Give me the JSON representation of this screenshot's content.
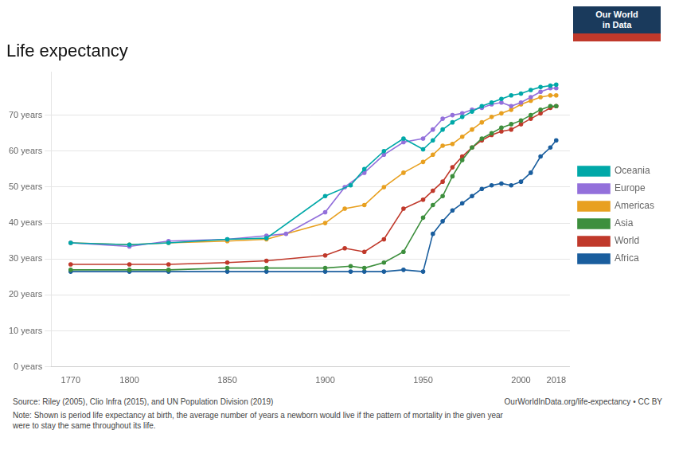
{
  "chart_data": {
    "type": "line",
    "title": "Life expectancy",
    "xlim": [
      1760,
      2025
    ],
    "xticks": [
      1770,
      1800,
      1850,
      1900,
      1950,
      2000,
      2018
    ],
    "ylim": [
      0,
      82
    ],
    "yticks": [
      {
        "value": 0,
        "label": "0 years"
      },
      {
        "value": 10,
        "label": "10 years"
      },
      {
        "value": 20,
        "label": "20 years"
      },
      {
        "value": 30,
        "label": "30 years"
      },
      {
        "value": 40,
        "label": "40 years"
      },
      {
        "value": 50,
        "label": "50 years"
      },
      {
        "value": 60,
        "label": "60 years"
      },
      {
        "value": 70,
        "label": "70 years"
      }
    ],
    "grid": "y",
    "legend": "right",
    "marker": "circle",
    "series": [
      {
        "name": "Oceania",
        "color": "#00a8a8",
        "x": [
          1770,
          1800,
          1820,
          1850,
          1870,
          1900,
          1913,
          1920,
          1930,
          1940,
          1950,
          1955,
          1960,
          1965,
          1970,
          1975,
          1980,
          1985,
          1990,
          1995,
          2000,
          2005,
          2010,
          2015,
          2018
        ],
        "values": [
          34.5,
          34.0,
          34.5,
          35.5,
          35.8,
          47.5,
          50.5,
          55.0,
          60.0,
          63.5,
          60.5,
          63.0,
          66.0,
          68.0,
          69.5,
          71.0,
          72.5,
          73.5,
          74.5,
          75.5,
          76.0,
          77.0,
          77.8,
          78.2,
          78.5
        ]
      },
      {
        "name": "Europe",
        "color": "#9370db",
        "x": [
          1770,
          1800,
          1820,
          1850,
          1870,
          1880,
          1900,
          1910,
          1920,
          1930,
          1940,
          1950,
          1955,
          1960,
          1965,
          1970,
          1975,
          1980,
          1985,
          1990,
          1995,
          2000,
          2005,
          2010,
          2015,
          2018
        ],
        "values": [
          34.5,
          33.5,
          35.0,
          35.5,
          36.5,
          37.0,
          43.0,
          50.0,
          54.0,
          59.0,
          62.5,
          63.5,
          66.0,
          69.0,
          70.0,
          70.5,
          71.5,
          72.0,
          73.0,
          73.5,
          72.5,
          73.5,
          75.0,
          76.5,
          77.5,
          77.5
        ]
      },
      {
        "name": "Americas",
        "color": "#e8a020",
        "x": [
          1770,
          1800,
          1820,
          1850,
          1870,
          1900,
          1910,
          1920,
          1930,
          1940,
          1950,
          1955,
          1960,
          1965,
          1970,
          1975,
          1980,
          1985,
          1990,
          1995,
          2000,
          2005,
          2010,
          2015,
          2018
        ],
        "values": [
          34.5,
          34.0,
          34.5,
          35.0,
          35.5,
          40.0,
          44.0,
          45.0,
          50.0,
          54.0,
          57.0,
          59.0,
          61.5,
          62.0,
          64.0,
          66.0,
          68.0,
          69.5,
          70.5,
          71.5,
          73.0,
          74.0,
          75.0,
          75.5,
          75.5
        ]
      },
      {
        "name": "Asia",
        "color": "#3d8f3d",
        "x": [
          1770,
          1800,
          1820,
          1850,
          1870,
          1900,
          1913,
          1920,
          1930,
          1940,
          1950,
          1955,
          1960,
          1965,
          1970,
          1975,
          1980,
          1985,
          1990,
          1995,
          2000,
          2005,
          2010,
          2015,
          2018
        ],
        "values": [
          27.0,
          27.0,
          27.0,
          27.5,
          27.5,
          27.5,
          28.0,
          27.5,
          29.0,
          32.0,
          41.5,
          45.0,
          47.5,
          53.0,
          57.5,
          61.0,
          63.5,
          65.0,
          66.5,
          67.5,
          68.5,
          70.0,
          71.5,
          72.5,
          72.5
        ]
      },
      {
        "name": "World",
        "color": "#c0392b",
        "x": [
          1770,
          1800,
          1820,
          1850,
          1870,
          1900,
          1910,
          1920,
          1930,
          1940,
          1950,
          1955,
          1960,
          1965,
          1970,
          1975,
          1980,
          1985,
          1990,
          1995,
          2000,
          2005,
          2010,
          2015,
          2018
        ],
        "values": [
          28.5,
          28.5,
          28.5,
          29.0,
          29.5,
          31.0,
          33.0,
          32.0,
          35.5,
          44.0,
          46.5,
          49.0,
          51.5,
          55.5,
          58.5,
          61.0,
          63.0,
          64.5,
          65.5,
          66.0,
          67.5,
          69.0,
          70.5,
          72.0,
          72.5
        ]
      },
      {
        "name": "Africa",
        "color": "#1a5e9e",
        "x": [
          1770,
          1800,
          1820,
          1850,
          1870,
          1900,
          1913,
          1920,
          1930,
          1940,
          1950,
          1955,
          1960,
          1965,
          1970,
          1975,
          1980,
          1985,
          1990,
          1995,
          2000,
          2005,
          2010,
          2015,
          2018
        ],
        "values": [
          26.5,
          26.5,
          26.5,
          26.5,
          26.5,
          26.5,
          26.5,
          26.5,
          26.5,
          27.0,
          26.5,
          37.0,
          40.5,
          43.5,
          45.5,
          47.5,
          49.5,
          50.5,
          51.0,
          50.5,
          51.5,
          54.0,
          58.5,
          61.0,
          63.0
        ]
      }
    ],
    "annotations": [
      "Our World",
      "in Data",
      "Source: Riley (2005), Clio Infra (2015), and UN Population Division (2019)",
      "OurWorldInData.org/life-expectancy • CC BY",
      "Note: Shown is period life expectancy at birth, the average number of years a newborn would live if the pattern of mortality in the given year\nwere to stay the same throughout its life."
    ]
  }
}
